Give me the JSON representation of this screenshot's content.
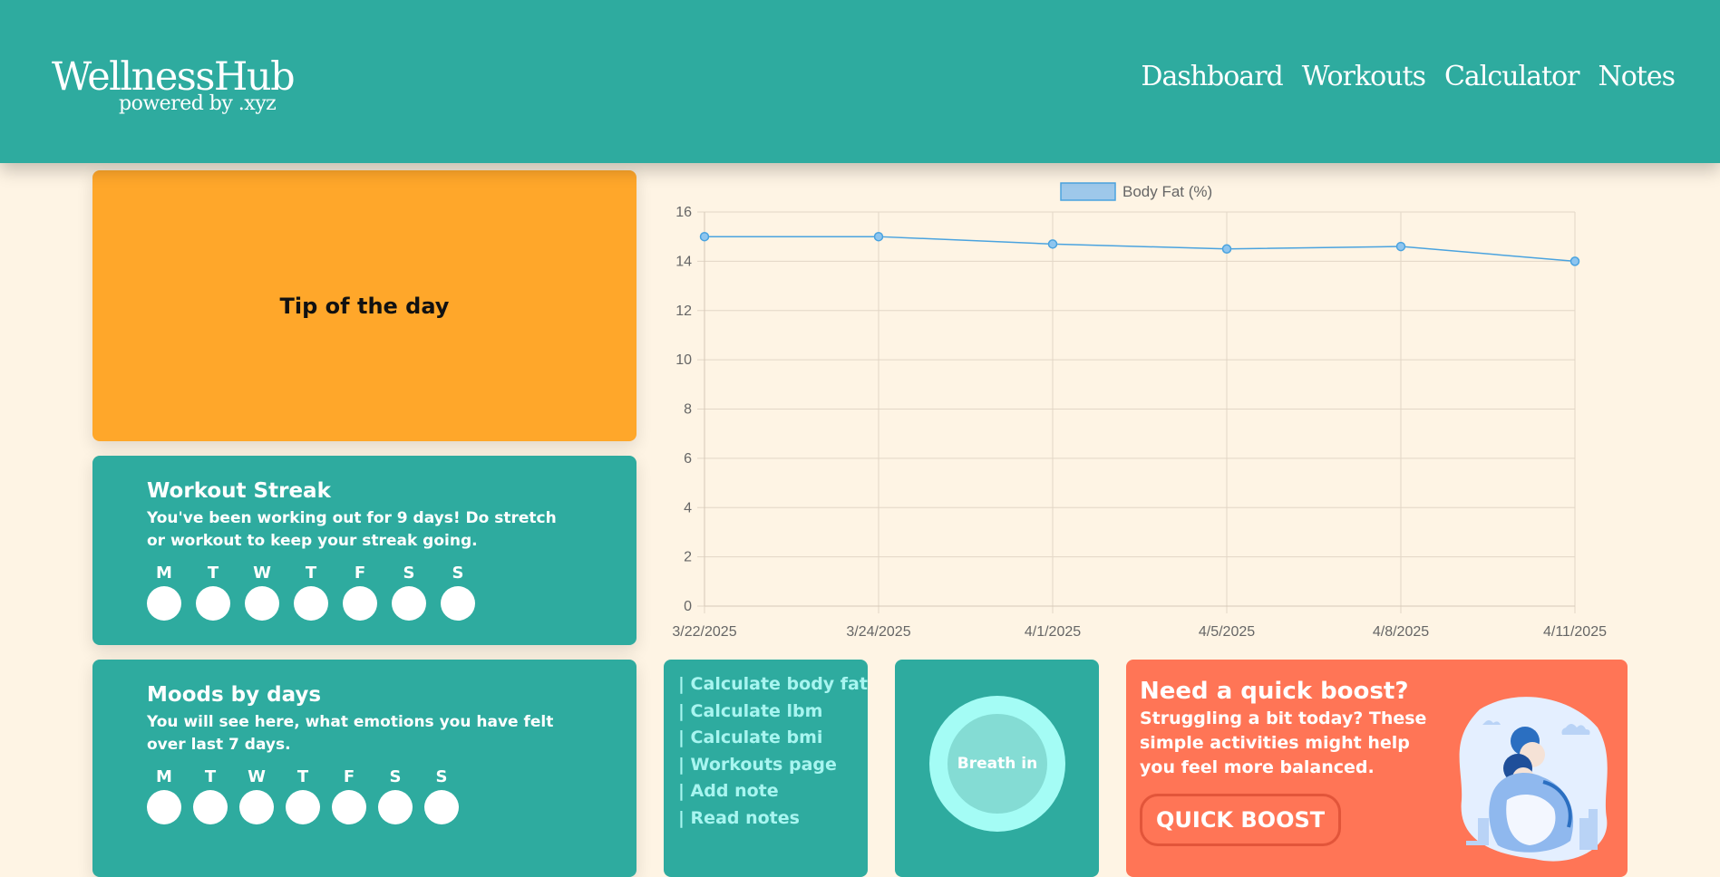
{
  "header": {
    "logo_title": "WellnessHub",
    "logo_subtitle": "powered by .xyz",
    "nav": [
      "Dashboard",
      "Workouts",
      "Calculator",
      "Notes"
    ]
  },
  "tip": {
    "title": "Tip of the day"
  },
  "streak": {
    "title": "Workout Streak",
    "text": "You've been working out for 9 days! Do stretch or workout to keep your streak going.",
    "days": [
      "M",
      "T",
      "W",
      "T",
      "F",
      "S",
      "S"
    ]
  },
  "moods": {
    "title": "Moods by days",
    "text": "You will see here, what emotions you have felt over last 7 days.",
    "days": [
      "M",
      "T",
      "W",
      "T",
      "F",
      "S",
      "S"
    ]
  },
  "links": [
    "| Calculate body fat",
    "| Calculate lbm",
    "| Calculate bmi",
    "| Workouts page",
    "| Add note",
    "| Read notes"
  ],
  "breath": {
    "label": "Breath in"
  },
  "boost": {
    "title": "Need a quick boost?",
    "text": "Struggling a bit today? These simple activities might help you feel more balanced.",
    "button": "QUICK BOOST"
  },
  "colors": {
    "primary": "#2eab9f",
    "accent": "#ffa72a",
    "boost": "#ff7556",
    "background": "#fef4e4",
    "line": "#4aa3df"
  },
  "chart_data": {
    "type": "line",
    "categories": [
      "3/22/2025",
      "3/24/2025",
      "4/1/2025",
      "4/5/2025",
      "4/8/2025",
      "4/11/2025"
    ],
    "series": [
      {
        "name": "Body Fat (%)",
        "values": [
          15,
          15,
          14.7,
          14.5,
          14.6,
          14
        ]
      }
    ],
    "ylim": [
      0,
      16
    ],
    "yticks": [
      0,
      2,
      4,
      6,
      8,
      10,
      12,
      14,
      16
    ],
    "grid": true,
    "legend": "top-center"
  }
}
